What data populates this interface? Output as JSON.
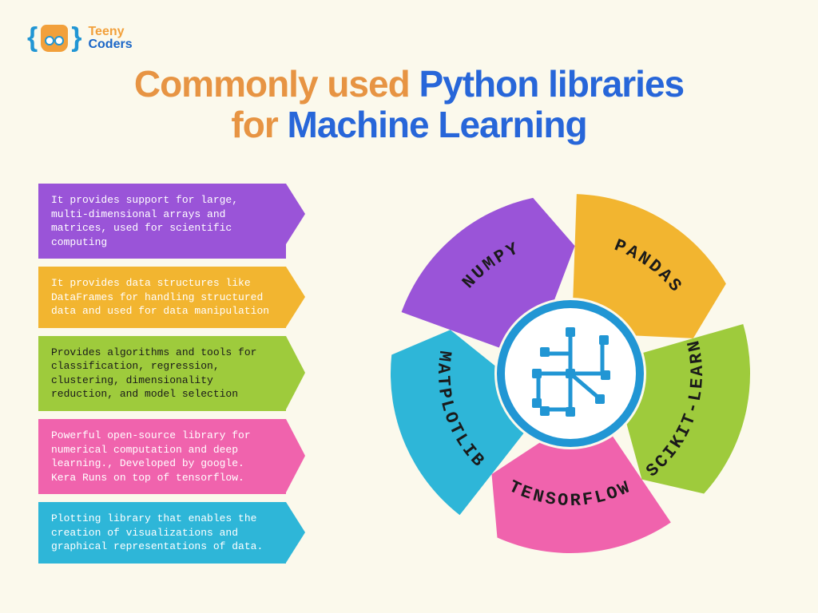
{
  "logo": {
    "line1": "Teeny",
    "line2": "Coders"
  },
  "title": {
    "part1": "Commonly used ",
    "part2": "Python libraries",
    "part3": "for ",
    "part4": "Machine Learning",
    "color_orange": "#e79443",
    "color_blue": "#2766d9",
    "fontsize": 46
  },
  "descriptions": [
    {
      "text": "It provides support for large, multi-dimensional arrays and matrices, used for scientific computing",
      "color": "#9a54d8",
      "half_height": 38
    },
    {
      "text": "It provides data structures like DataFrames for handling structured data and used for data manipulation",
      "color": "#f2b530",
      "half_height": 38
    },
    {
      "text": "Provides algorithms and tools for classification, regression, clustering, dimensionality reduction, and model selection",
      "color": "#9ecb3c",
      "half_height": 46
    },
    {
      "text": "Powerful open-source library for numerical computation and deep learning., Developed by google. Kera Runs on top of tensorflow.",
      "color": "#f063ad",
      "half_height": 46
    },
    {
      "text": "Plotting library that enables the creation of visualizations and graphical representations of data.",
      "color": "#2eb6d8",
      "half_height": 38
    }
  ],
  "wheel": {
    "type": "circular-segments",
    "background": "#fbf9ec",
    "center_icon_color": "#2196d4",
    "inner_radius": 95,
    "outer_radius": 225,
    "label_radius": 165,
    "segments": [
      {
        "label": "NUMPY",
        "color": "#9a54d8",
        "start_deg": 198,
        "end_deg": 270
      },
      {
        "label": "PANDAS",
        "color": "#f2b530",
        "start_deg": 270,
        "end_deg": 342
      },
      {
        "label": "SCIKIT-LEARN",
        "color": "#9ecb3c",
        "start_deg": 342,
        "end_deg": 414
      },
      {
        "label": "TENSORFLOW",
        "color": "#f063ad",
        "start_deg": 54,
        "end_deg": 126
      },
      {
        "label": "MATPLOTLIB",
        "color": "#2eb6d8",
        "start_deg": 126,
        "end_deg": 198
      }
    ],
    "label_fontsize": 22
  }
}
